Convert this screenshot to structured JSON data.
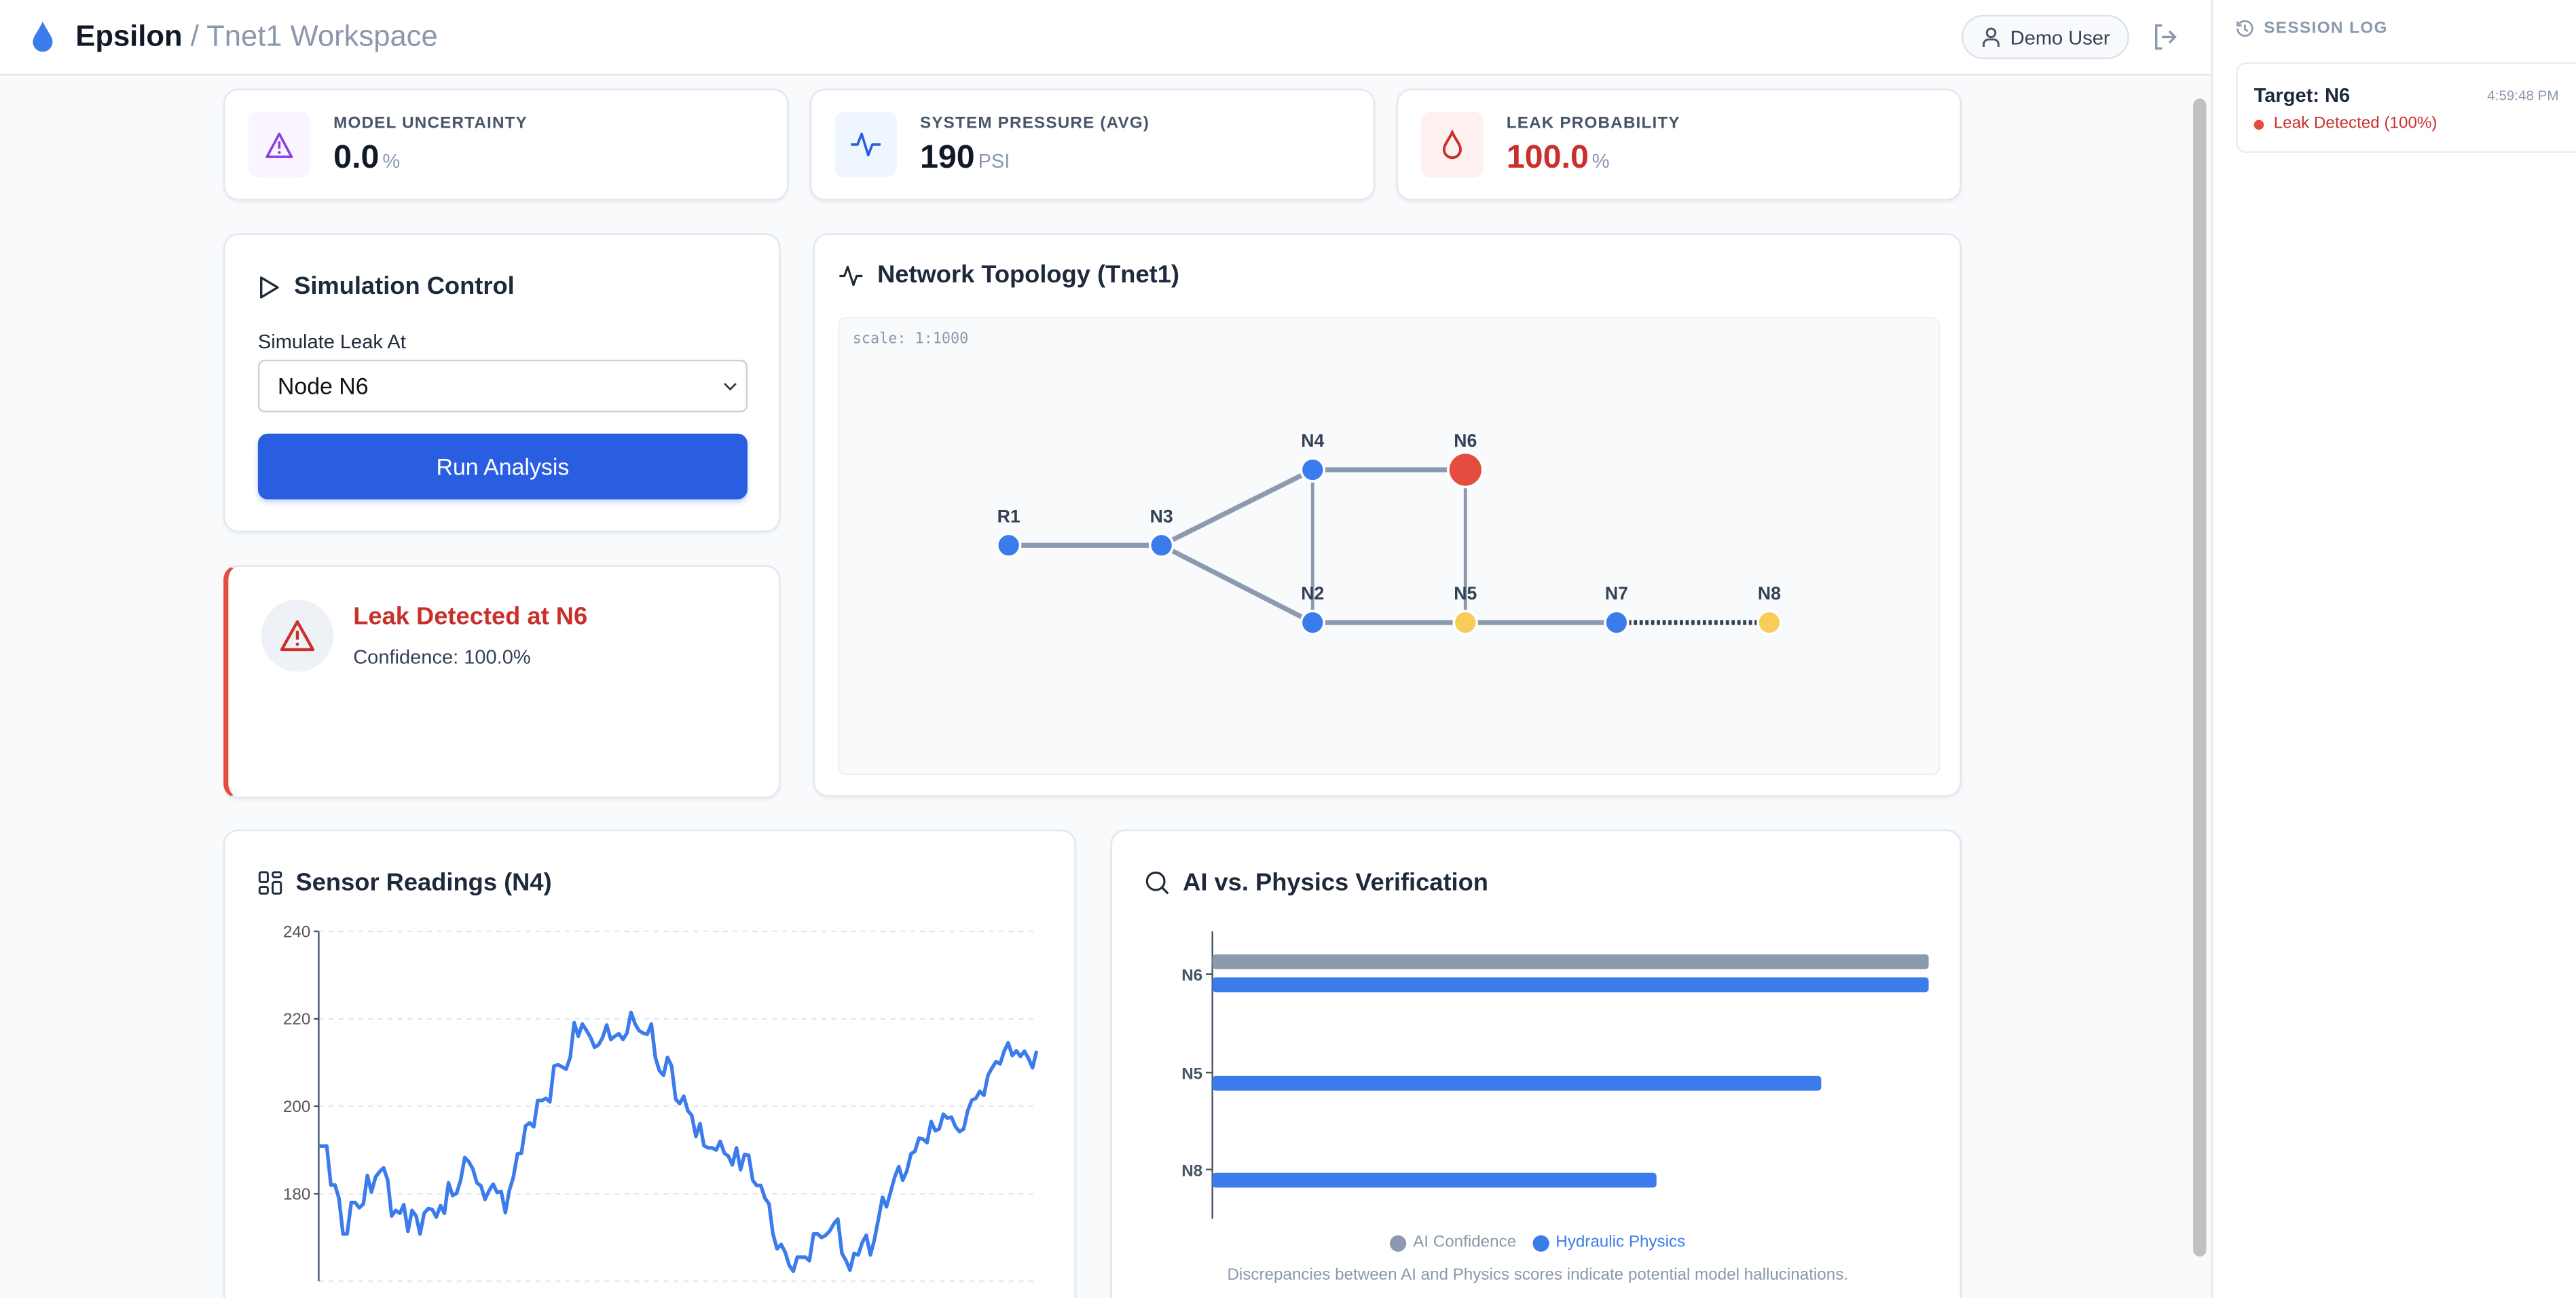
{
  "header": {
    "app_name": "Epsilon",
    "workspace": "/ Tnet1 Workspace",
    "user": "Demo User"
  },
  "colors": {
    "accent": "#2a5ee0",
    "blue": "#3b7bec",
    "leak": "#e34c3f",
    "warning": "#f7cc58",
    "pipe": "#8c9ab0",
    "danger_text": "#c9302c"
  },
  "stats": [
    {
      "label": "MODEL UNCERTAINTY",
      "value": "0.0",
      "unit": "%",
      "icon": "warning-triangle-icon"
    },
    {
      "label": "SYSTEM PRESSURE (AVG)",
      "value": "190",
      "unit": "PSI",
      "icon": "activity-icon"
    },
    {
      "label": "LEAK PROBABILITY",
      "value": "100.0",
      "unit": "%",
      "icon": "droplet-icon"
    }
  ],
  "simulation": {
    "title": "Simulation Control",
    "field_label": "Simulate Leak At",
    "selected": "Node N6",
    "run_label": "Run Analysis"
  },
  "alert": {
    "title": "Leak Detected at N6",
    "confidence": "Confidence: 100.0%"
  },
  "topology": {
    "title": "Network Topology (Tnet1)",
    "scale": "scale: 1:1000",
    "nodes": [
      {
        "id": "R1",
        "status": "normal"
      },
      {
        "id": "N3",
        "status": "normal"
      },
      {
        "id": "N4",
        "status": "normal"
      },
      {
        "id": "N6",
        "status": "leak"
      },
      {
        "id": "N2",
        "status": "normal"
      },
      {
        "id": "N5",
        "status": "warning"
      },
      {
        "id": "N7",
        "status": "normal"
      },
      {
        "id": "N8",
        "status": "warning"
      }
    ],
    "edges": [
      {
        "from": "R1",
        "to": "N3"
      },
      {
        "from": "N3",
        "to": "N4"
      },
      {
        "from": "N3",
        "to": "N2"
      },
      {
        "from": "N4",
        "to": "N6"
      },
      {
        "from": "N4",
        "to": "N2"
      },
      {
        "from": "N6",
        "to": "N5"
      },
      {
        "from": "N2",
        "to": "N5"
      },
      {
        "from": "N5",
        "to": "N7"
      },
      {
        "from": "N7",
        "to": "N8",
        "style": "dashed"
      }
    ]
  },
  "sensor": {
    "title": "Sensor Readings (N4)"
  },
  "verification": {
    "title": "AI vs. Physics Verification",
    "caption": "Discrepancies between AI and Physics scores indicate potential model hallucinations."
  },
  "chart_data": [
    {
      "type": "line",
      "title": "Sensor Readings (N4)",
      "ylim": [
        160,
        240
      ],
      "yticks": [
        180,
        200,
        220,
        240
      ],
      "grid": true,
      "series": [
        {
          "color": "#3b7bec",
          "values": [
            190.9,
            190.9,
            190.9,
            182.0,
            182.0,
            179.0,
            170.8,
            170.8,
            178.0,
            178.0,
            176.8,
            177.7,
            184.2,
            180.4,
            183.8,
            185.0,
            185.9,
            183.1,
            174.9,
            176.2,
            175.5,
            177.5,
            171.4,
            176.2,
            174.9,
            170.8,
            175.6,
            176.6,
            176.4,
            174.7,
            177.3,
            175.5,
            182.5,
            179.6,
            180.1,
            183.1,
            188.3,
            187.3,
            185.7,
            182.5,
            181.8,
            178.7,
            180.7,
            182.2,
            180.3,
            180.5,
            175.7,
            180.7,
            183.8,
            189.1,
            189.3,
            195.5,
            196.2,
            195.3,
            201.3,
            201.3,
            201.8,
            201.0,
            209.2,
            209.5,
            209.0,
            208.5,
            211.2,
            219.1,
            216.0,
            218.8,
            217.4,
            215.8,
            213.5,
            214.1,
            215.7,
            218.6,
            215.3,
            216.0,
            216.6,
            215.3,
            216.7,
            221.5,
            218.8,
            217.3,
            216.7,
            216.5,
            218.8,
            211.2,
            208.1,
            207.1,
            211.2,
            209.2,
            201.6,
            200.6,
            202.3,
            199.0,
            197.9,
            193.1,
            196.0,
            191.0,
            190.5,
            190.5,
            190.0,
            192.0,
            189.3,
            188.6,
            186.6,
            190.5,
            185.5,
            189.0,
            188.8,
            183.1,
            181.9,
            181.9,
            179.0,
            177.7,
            170.8,
            167.4,
            168.4,
            166.7,
            163.6,
            162.3,
            165.5,
            165.5,
            165.5,
            164.7,
            170.8,
            170.8,
            170.0,
            170.5,
            171.5,
            173.2,
            174.2,
            166.4,
            164.7,
            162.5,
            166.4,
            166.0,
            168.8,
            170.5,
            166.0,
            169.4,
            174.2,
            179.2,
            177.0,
            180.4,
            183.8,
            186.2,
            183.1,
            185.2,
            189.1,
            189.7,
            192.7,
            192.5,
            191.7,
            196.5,
            194.4,
            194.8,
            198.2,
            197.3,
            197.5,
            195.3,
            194.2,
            194.8,
            198.9,
            201.4,
            201.8,
            203.4,
            202.5,
            207.1,
            208.7,
            210.2,
            209.7,
            212.6,
            214.5,
            211.6,
            212.7,
            211.4,
            212.6,
            210.9,
            208.8,
            212.7
          ]
        }
      ]
    },
    {
      "type": "bar",
      "orientation": "horizontal",
      "title": "AI vs. Physics Verification",
      "categories": [
        "N6",
        "N5",
        "N8"
      ],
      "xlim": [
        0,
        100
      ],
      "legend": "bottom",
      "series": [
        {
          "name": "AI Confidence",
          "color": "#8c9ab0",
          "values": [
            100,
            0,
            0
          ]
        },
        {
          "name": "Hydraulic Physics",
          "color": "#3b7bec",
          "values": [
            100,
            85,
            62
          ]
        }
      ]
    }
  ],
  "session_log": {
    "title": "SESSION LOG",
    "entries": [
      {
        "target": "Target: N6",
        "time": "4:59:48 PM",
        "status": "Leak Detected (100%)"
      }
    ]
  }
}
